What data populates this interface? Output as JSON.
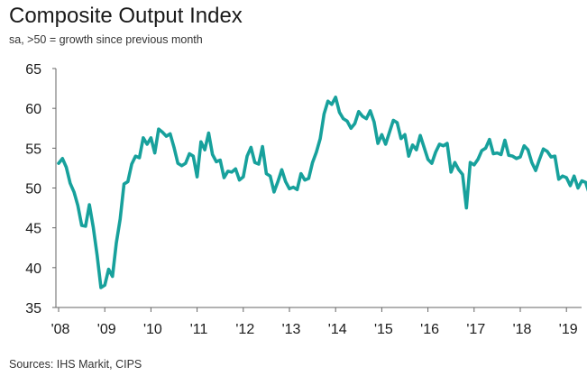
{
  "header": {
    "title": "Composite Output Index",
    "subtitle": "sa, >50 = growth since previous month"
  },
  "footer": {
    "source": "Sources: IHS Markit, CIPS"
  },
  "colors": {
    "line": "#17A19C",
    "axis": "#666666",
    "text": "#1a1a1a"
  },
  "chart_data": {
    "type": "line",
    "title": "Composite Output Index",
    "subtitle": "sa, >50 = growth since previous month",
    "xlabel": "",
    "ylabel": "",
    "ylim": [
      35,
      65
    ],
    "y_ticks": [
      35,
      40,
      45,
      50,
      55,
      60,
      65
    ],
    "x_tick_labels": [
      "'08",
      "'09",
      "'10",
      "'11",
      "'12",
      "'13",
      "'14",
      "'15",
      "'16",
      "'17",
      "'18",
      "'19"
    ],
    "grid": false,
    "legend": "none",
    "series": [
      {
        "x": [
          "2008-01",
          "2008-02",
          "2008-03",
          "2008-04",
          "2008-05",
          "2008-06",
          "2008-07",
          "2008-08",
          "2008-09",
          "2008-10",
          "2008-11",
          "2008-12",
          "2009-01",
          "2009-02",
          "2009-03",
          "2009-04",
          "2009-05",
          "2009-06",
          "2009-07",
          "2009-08",
          "2009-09",
          "2009-10",
          "2009-11",
          "2009-12",
          "2010-01",
          "2010-02",
          "2010-03",
          "2010-04",
          "2010-05",
          "2010-06",
          "2010-07",
          "2010-08",
          "2010-09",
          "2010-10",
          "2010-11",
          "2010-12",
          "2011-01",
          "2011-02",
          "2011-03",
          "2011-04",
          "2011-05",
          "2011-06",
          "2011-07",
          "2011-08",
          "2011-09",
          "2011-10",
          "2011-11",
          "2011-12",
          "2012-01",
          "2012-02",
          "2012-03",
          "2012-04",
          "2012-05",
          "2012-06",
          "2012-07",
          "2012-08",
          "2012-09",
          "2012-10",
          "2012-11",
          "2012-12",
          "2013-01",
          "2013-02",
          "2013-03",
          "2013-04",
          "2013-05",
          "2013-06",
          "2013-07",
          "2013-08",
          "2013-09",
          "2013-10",
          "2013-11",
          "2013-12",
          "2014-01",
          "2014-02",
          "2014-03",
          "2014-04",
          "2014-05",
          "2014-06",
          "2014-07",
          "2014-08",
          "2014-09",
          "2014-10",
          "2014-11",
          "2014-12",
          "2015-01",
          "2015-02",
          "2015-03",
          "2015-04",
          "2015-05",
          "2015-06",
          "2015-07",
          "2015-08",
          "2015-09",
          "2015-10",
          "2015-11",
          "2015-12",
          "2016-01",
          "2016-02",
          "2016-03",
          "2016-04",
          "2016-05",
          "2016-06",
          "2016-07",
          "2016-08",
          "2016-09",
          "2016-10",
          "2016-11",
          "2016-12",
          "2017-01",
          "2017-02",
          "2017-03",
          "2017-04",
          "2017-05",
          "2017-06",
          "2017-07",
          "2017-08",
          "2017-09",
          "2017-10",
          "2017-11",
          "2017-12",
          "2018-01",
          "2018-02",
          "2018-03",
          "2018-04",
          "2018-05",
          "2018-06",
          "2018-07",
          "2018-08",
          "2018-09",
          "2018-10",
          "2018-11",
          "2018-12",
          "2019-01",
          "2019-02",
          "2019-03",
          "2019-04",
          "2019-05",
          "2019-06",
          "2019-07"
        ],
        "values": [
          53.1,
          53.7,
          52.6,
          50.6,
          49.5,
          47.8,
          45.3,
          45.2,
          47.9,
          45.1,
          41.6,
          37.5,
          37.8,
          39.8,
          38.9,
          43.1,
          46.1,
          50.5,
          50.8,
          53.0,
          54.0,
          53.8,
          56.3,
          55.5,
          56.3,
          54.4,
          57.4,
          57.0,
          56.5,
          56.8,
          55.1,
          53.1,
          52.8,
          53.1,
          54.3,
          54.0,
          51.4,
          55.8,
          54.8,
          56.9,
          54.2,
          53.3,
          53.5,
          51.3,
          52.1,
          52.0,
          52.4,
          51.0,
          51.4,
          54.0,
          55.1,
          53.2,
          53.0,
          55.2,
          51.8,
          51.5,
          49.5,
          50.8,
          52.3,
          50.8,
          49.9,
          50.1,
          49.8,
          51.8,
          51.0,
          51.2,
          53.2,
          54.5,
          56.2,
          59.3,
          60.9,
          60.5,
          61.4,
          59.5,
          58.7,
          58.4,
          57.5,
          58.1,
          59.6,
          59.0,
          58.7,
          59.7,
          58.3,
          55.6,
          56.7,
          55.5,
          57.0,
          58.5,
          58.2,
          56.2,
          56.7,
          54.0,
          55.4,
          54.8,
          56.6,
          55.1,
          53.6,
          53.1,
          54.5,
          55.5,
          55.3,
          55.6,
          52.0,
          53.2,
          52.3,
          51.7,
          47.5,
          53.2,
          52.9,
          53.6,
          54.7,
          55.0,
          56.1,
          54.3,
          54.4,
          54.2,
          56.0,
          54.1,
          54.0,
          53.7,
          53.9,
          55.3,
          54.8,
          53.2,
          52.2,
          53.6,
          54.9,
          54.6,
          53.9,
          54.0,
          51.1,
          51.5,
          51.3,
          50.3,
          51.5,
          50.0,
          50.9,
          50.7,
          49.2
        ]
      }
    ]
  }
}
